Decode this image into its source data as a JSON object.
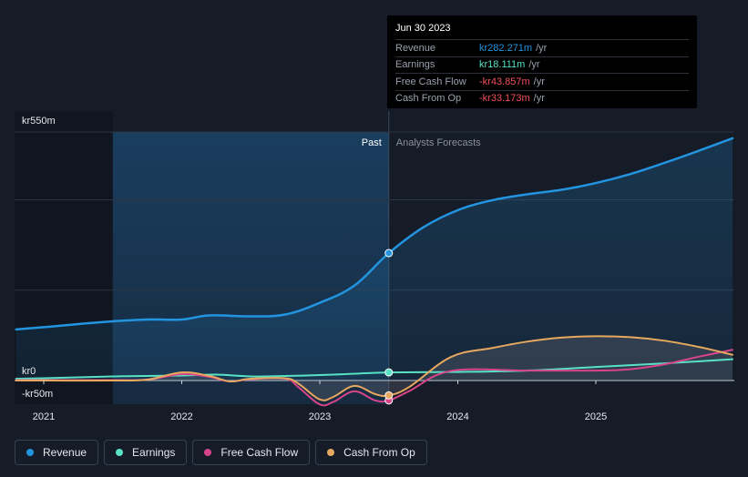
{
  "chart_data": {
    "type": "area",
    "currency_prefix": "kr",
    "y_axis": {
      "top_label": "kr550m",
      "zero_label": "kr0",
      "bottom_label": "-kr50m",
      "ylim": [
        -50,
        550
      ]
    },
    "x_axis": {
      "tick_labels": [
        "2021",
        "2022",
        "2023",
        "2024",
        "2025"
      ],
      "ticks": [
        2021,
        2022,
        2023,
        2024,
        2025
      ],
      "xlim": [
        2020.8,
        2025.99
      ]
    },
    "past_label": "Past",
    "forecast_label": "Analysts Forecasts",
    "divider_x": 2023.5,
    "past_region_start": 2021.5,
    "series": [
      {
        "name": "Revenue",
        "color": "#2394df",
        "fill": true,
        "points": [
          [
            2020.8,
            113
          ],
          [
            2021.0,
            118
          ],
          [
            2021.25,
            125
          ],
          [
            2021.5,
            131
          ],
          [
            2021.75,
            135
          ],
          [
            2022.0,
            135
          ],
          [
            2022.2,
            144
          ],
          [
            2022.5,
            142
          ],
          [
            2022.75,
            146
          ],
          [
            2023.0,
            172
          ],
          [
            2023.25,
            210
          ],
          [
            2023.5,
            282
          ],
          [
            2023.75,
            339
          ],
          [
            2024.0,
            377
          ],
          [
            2024.25,
            399
          ],
          [
            2024.5,
            412
          ],
          [
            2024.75,
            422
          ],
          [
            2025.0,
            437
          ],
          [
            2025.25,
            457
          ],
          [
            2025.5,
            482
          ],
          [
            2025.75,
            509
          ],
          [
            2025.99,
            536
          ]
        ]
      },
      {
        "name": "Earnings",
        "color": "#58e1c4",
        "fill": false,
        "points": [
          [
            2020.8,
            4
          ],
          [
            2021.0,
            5
          ],
          [
            2021.5,
            9
          ],
          [
            2022.0,
            11
          ],
          [
            2022.25,
            13
          ],
          [
            2022.5,
            9
          ],
          [
            2022.75,
            10
          ],
          [
            2023.0,
            12
          ],
          [
            2023.25,
            15
          ],
          [
            2023.5,
            18
          ],
          [
            2024.0,
            19
          ],
          [
            2024.5,
            22
          ],
          [
            2025.0,
            30
          ],
          [
            2025.5,
            38
          ],
          [
            2025.99,
            47
          ]
        ]
      },
      {
        "name": "Free Cash Flow",
        "color": "#d6448a",
        "fill": false,
        "points": [
          [
            2020.8,
            1
          ],
          [
            2021.0,
            1
          ],
          [
            2021.5,
            1
          ],
          [
            2021.75,
            2
          ],
          [
            2022.0,
            14
          ],
          [
            2022.2,
            8
          ],
          [
            2022.35,
            -2
          ],
          [
            2022.5,
            3
          ],
          [
            2022.75,
            4
          ],
          [
            2022.85,
            -16
          ],
          [
            2023.0,
            -53
          ],
          [
            2023.1,
            -47
          ],
          [
            2023.25,
            -24
          ],
          [
            2023.4,
            -44
          ],
          [
            2023.5,
            -44
          ],
          [
            2023.65,
            -23
          ],
          [
            2023.95,
            21
          ],
          [
            2024.5,
            22
          ],
          [
            2025.0,
            22
          ],
          [
            2025.25,
            25
          ],
          [
            2025.5,
            36
          ],
          [
            2025.75,
            53
          ],
          [
            2025.99,
            68
          ]
        ]
      },
      {
        "name": "Cash From Op",
        "color": "#e7a85f",
        "fill": true,
        "points": [
          [
            2020.8,
            0
          ],
          [
            2021.0,
            0
          ],
          [
            2021.5,
            0
          ],
          [
            2021.75,
            2
          ],
          [
            2022.0,
            18
          ],
          [
            2022.2,
            10
          ],
          [
            2022.35,
            -2
          ],
          [
            2022.5,
            4
          ],
          [
            2022.75,
            5
          ],
          [
            2022.85,
            -8
          ],
          [
            2023.0,
            -42
          ],
          [
            2023.1,
            -36
          ],
          [
            2023.25,
            -12
          ],
          [
            2023.4,
            -30
          ],
          [
            2023.5,
            -33
          ],
          [
            2023.65,
            -14
          ],
          [
            2023.95,
            52
          ],
          [
            2024.25,
            72
          ],
          [
            2024.5,
            86
          ],
          [
            2024.75,
            95
          ],
          [
            2025.0,
            98
          ],
          [
            2025.25,
            96
          ],
          [
            2025.5,
            88
          ],
          [
            2025.75,
            74
          ],
          [
            2025.99,
            57
          ]
        ]
      }
    ],
    "markers": [
      {
        "series": "Revenue",
        "x": 2023.5,
        "y": 282
      },
      {
        "series": "Earnings",
        "x": 2023.5,
        "y": 18
      },
      {
        "series": "Free Cash Flow",
        "x": 2023.5,
        "y": -44
      },
      {
        "series": "Cash From Op",
        "x": 2023.5,
        "y": -33
      }
    ]
  },
  "tooltip": {
    "date": "Jun 30 2023",
    "rows": [
      {
        "label": "Revenue",
        "value": "kr282.271m",
        "unit": "/yr",
        "color": "#2394df"
      },
      {
        "label": "Earnings",
        "value": "kr18.111m",
        "unit": "/yr",
        "color": "#58e1c4"
      },
      {
        "label": "Free Cash Flow",
        "value": "-kr43.857m",
        "unit": "/yr",
        "color": "#f0505a"
      },
      {
        "label": "Cash From Op",
        "value": "-kr33.173m",
        "unit": "/yr",
        "color": "#f0505a"
      }
    ]
  },
  "legend": [
    {
      "label": "Revenue",
      "color": "#2394df"
    },
    {
      "label": "Earnings",
      "color": "#58e1c4"
    },
    {
      "label": "Free Cash Flow",
      "color": "#d6448a"
    },
    {
      "label": "Cash From Op",
      "color": "#e7a85f"
    }
  ]
}
